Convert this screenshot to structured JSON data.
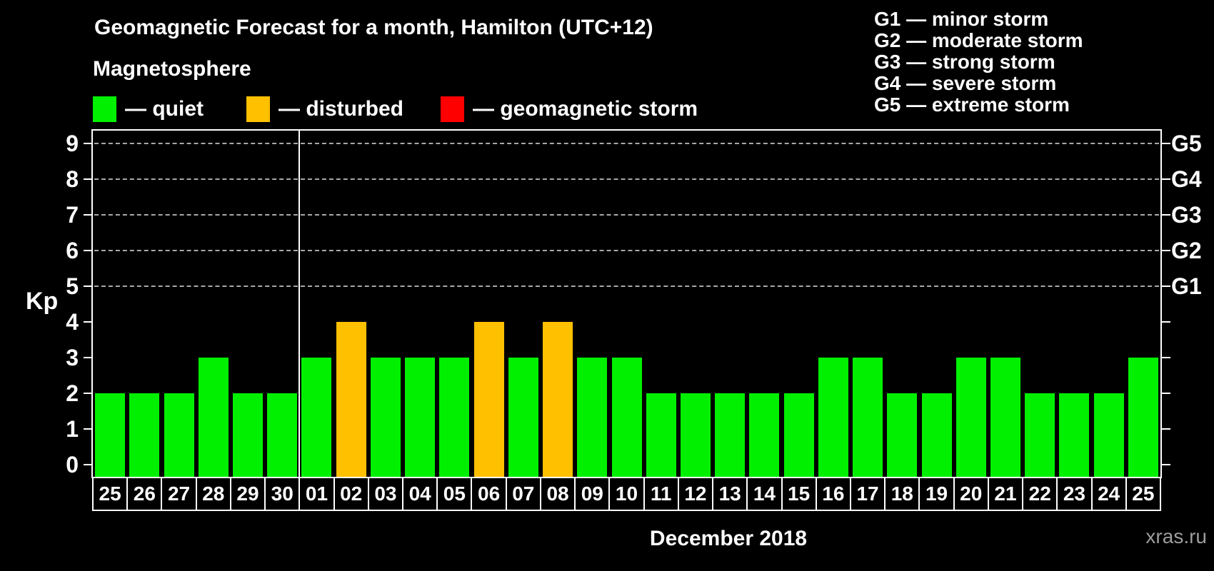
{
  "header": {
    "title": "Geomagnetic Forecast for a month, Hamilton (UTC+12)",
    "subtitle": "Magnetosphere"
  },
  "legend": {
    "items": [
      {
        "name": "quiet",
        "swatch_color": "#00f000",
        "label": "— quiet"
      },
      {
        "name": "disturbed",
        "swatch_color": "#ffc000",
        "label": "— disturbed"
      },
      {
        "name": "storm",
        "swatch_color": "#ff0000",
        "label": "— geomagnetic storm"
      }
    ]
  },
  "g_scale_legend": [
    "G1 — minor storm",
    "G2 — moderate storm",
    "G3 — strong storm",
    "G4 — severe storm",
    "G5 — extreme storm"
  ],
  "axes": {
    "y_title": "Kp",
    "y_ticks": [
      0,
      1,
      2,
      3,
      4,
      5,
      6,
      7,
      8,
      9
    ],
    "right_scale": [
      {
        "label": "G1",
        "kp": 5
      },
      {
        "label": "G2",
        "kp": 6
      },
      {
        "label": "G3",
        "kp": 7
      },
      {
        "label": "G4",
        "kp": 8
      },
      {
        "label": "G5",
        "kp": 9
      }
    ]
  },
  "chart_data": {
    "type": "bar",
    "title": "Geomagnetic Forecast for a month, Hamilton (UTC+12)",
    "ylabel": "Kp",
    "xlabel": "December 2018",
    "ylim": [
      0,
      9
    ],
    "grid_levels": [
      5,
      6,
      7,
      8,
      9
    ],
    "grid": "dashed horizontal at Kp 5-9 only",
    "legend_position": "top",
    "categories": [
      "25",
      "26",
      "27",
      "28",
      "29",
      "30",
      "01",
      "02",
      "03",
      "04",
      "05",
      "06",
      "07",
      "08",
      "09",
      "10",
      "11",
      "12",
      "13",
      "14",
      "15",
      "16",
      "17",
      "18",
      "19",
      "20",
      "21",
      "22",
      "23",
      "24",
      "25"
    ],
    "values": [
      2,
      2,
      2,
      3,
      2,
      2,
      3,
      4,
      3,
      3,
      3,
      4,
      3,
      4,
      3,
      3,
      2,
      2,
      2,
      2,
      2,
      3,
      3,
      2,
      2,
      3,
      3,
      2,
      2,
      2,
      3
    ],
    "states": [
      "quiet",
      "quiet",
      "quiet",
      "quiet",
      "quiet",
      "quiet",
      "quiet",
      "disturbed",
      "quiet",
      "quiet",
      "quiet",
      "disturbed",
      "quiet",
      "disturbed",
      "quiet",
      "quiet",
      "quiet",
      "quiet",
      "quiet",
      "quiet",
      "quiet",
      "quiet",
      "quiet",
      "quiet",
      "quiet",
      "quiet",
      "quiet",
      "quiet",
      "quiet",
      "quiet",
      "quiet"
    ],
    "state_colors": {
      "quiet": "#00f000",
      "disturbed": "#ffc000",
      "storm": "#ff0000"
    },
    "prev_month_days": 6,
    "month_divider_after_index": 5
  },
  "footer": {
    "month_label": "December 2018",
    "watermark": "xras.ru"
  }
}
